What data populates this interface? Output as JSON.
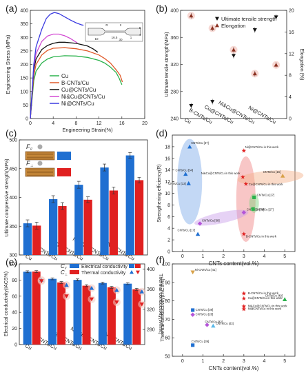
{
  "figure": {
    "width": 444,
    "height": 550
  },
  "colors": {
    "blue": "#1f6fd1",
    "red": "#e02020",
    "green": "#2bb24c",
    "magenta": "#b455d8",
    "orange": "#d8a24a",
    "darkred": "#9a2a1a"
  },
  "chart_data": [
    {
      "panel": "(a)",
      "type": "line",
      "xlabel": "Engineering Strain(%)",
      "ylabel": "Engineering Stress (MPa)",
      "xlim": [
        0,
        20
      ],
      "ylim": [
        0,
        400
      ],
      "xticks": [
        "0",
        "4",
        "8",
        "12",
        "16",
        "20"
      ],
      "yticks": [
        "0",
        "50",
        "100",
        "150",
        "200",
        "250",
        "300",
        "350",
        "400"
      ],
      "series": [
        {
          "name": "Cu",
          "color": "#2bb24c",
          "x": [
            0,
            0.3,
            0.6,
            1,
            2,
            3,
            4,
            6,
            8,
            10,
            12,
            13,
            14,
            15,
            15.5,
            16
          ],
          "y": [
            0,
            70,
            140,
            175,
            205,
            220,
            228,
            232,
            231,
            226,
            215,
            205,
            190,
            170,
            150,
            125
          ]
        },
        {
          "name": "B-CNTs/Cu",
          "color": "#e05a2a",
          "x": [
            0,
            0.3,
            0.6,
            1,
            2,
            3,
            4,
            6,
            8,
            10,
            12,
            13,
            14,
            15,
            15.7,
            16.1
          ],
          "y": [
            0,
            80,
            160,
            200,
            235,
            252,
            260,
            262,
            258,
            250,
            235,
            222,
            205,
            180,
            160,
            135
          ]
        },
        {
          "name": "Cu@CNTs/Cu",
          "color": "#111111",
          "x": [
            0,
            0.3,
            0.6,
            1,
            2,
            3,
            4,
            5,
            6,
            8,
            10,
            11,
            11.8
          ],
          "y": [
            0,
            90,
            180,
            220,
            255,
            270,
            278,
            282,
            282,
            278,
            268,
            257,
            245
          ]
        },
        {
          "name": "Ni&Cu@CNTs/Cu",
          "color": "#d24ad2",
          "x": [
            0,
            0.3,
            0.6,
            1,
            2,
            3,
            4,
            5,
            6,
            7,
            7.8,
            8.2
          ],
          "y": [
            0,
            95,
            190,
            240,
            285,
            305,
            312,
            312,
            306,
            296,
            285,
            280
          ]
        },
        {
          "name": "Ni@CNTs/Cu",
          "color": "#3a3ae0",
          "x": [
            0,
            0.3,
            0.6,
            1,
            2,
            2.8,
            3.5,
            4.2,
            5,
            6,
            7,
            8,
            9,
            9.3
          ],
          "y": [
            0,
            100,
            200,
            265,
            330,
            370,
            386,
            392,
            388,
            376,
            364,
            354,
            346,
            345
          ]
        }
      ],
      "inset_labels": [
        "R",
        "2",
        "16.5",
        "1",
        "10",
        "30",
        "9",
        "4"
      ]
    },
    {
      "panel": "(b)",
      "type": "scatter",
      "categories": [
        "Cu",
        "B-CNTs/Cu",
        "Cu@CNTs/Cu",
        "Ni&Cu@CNTs/Cu",
        "Ni@CNTs/Cu"
      ],
      "ylabel": "Ultimate tensile strength(MPa)",
      "y2label": "Elongation (%)",
      "ylim": [
        240,
        400
      ],
      "y2lim": [
        0,
        20
      ],
      "yticks": [
        "240",
        "280",
        "320",
        "360",
        "400"
      ],
      "y2ticks": [
        "0",
        "4",
        "8",
        "12",
        "16",
        "20"
      ],
      "series": [
        {
          "name": "Ultimate tensile strength",
          "axis": "left",
          "marker": "down-triangle",
          "color": "#111111",
          "values": [
            259,
            265,
            333,
            371,
            390
          ]
        },
        {
          "name": "Elongation",
          "axis": "right",
          "marker": "up-triangle",
          "color": "#8a3020",
          "values": [
            19.0,
            16.7,
            12.7,
            8.3,
            9.9
          ]
        }
      ]
    },
    {
      "panel": "(c)",
      "type": "bar",
      "categories": [
        "Cu",
        "B-CNTs/Cu",
        "Cu@CNTs/Cu",
        "Ni&Cu@CNTs/Cu",
        "Ni@CNTs/Cu"
      ],
      "ylabel": "Ultimate compressive strength(MPa)",
      "ylim": [
        300,
        500
      ],
      "yticks": [
        "300",
        "350",
        "400",
        "450",
        "500"
      ],
      "legend": [
        "F",
        "F"
      ],
      "legend_sub": [
        "//",
        "⊥"
      ],
      "series": [
        {
          "name": "F//",
          "color": "#1f6fd1",
          "values": [
            355,
            397,
            422,
            452,
            473
          ],
          "errors": [
            6,
            6,
            6,
            6,
            5
          ]
        },
        {
          "name": "F⊥",
          "color": "#e02020",
          "values": [
            351,
            385,
            396,
            412,
            430
          ],
          "errors": [
            6,
            6,
            5,
            6,
            5
          ]
        }
      ]
    },
    {
      "panel": "(d)",
      "type": "scatter",
      "xlabel": "CNTs content(vol.%)",
      "ylabel": "Strengthening efficiency(R)",
      "xlim": [
        -0.5,
        5.5
      ],
      "ylim": [
        0,
        20
      ],
      "xticks": [
        "0",
        "1",
        "2",
        "3",
        "4",
        "5"
      ],
      "yticks": [
        "0",
        "2",
        "4",
        "6",
        "8",
        "10",
        "12",
        "14",
        "16",
        "18"
      ],
      "points": [
        {
          "label": "CNTs/Cu [37]",
          "x": 0.35,
          "y": 18.0,
          "marker": "triangle",
          "color": "#1f6fd1"
        },
        {
          "label": "CNTs/Cu [34]",
          "x": 0.15,
          "y": 13.3,
          "marker": "triangle",
          "color": "#1f6fd1"
        },
        {
          "label": "CNTs/Cu [33]",
          "x": 0.3,
          "y": 11.7,
          "marker": "triangle",
          "color": "#1f6fd1"
        },
        {
          "label": "CNTs/Cu [17]",
          "x": 0.75,
          "y": 3.0,
          "marker": "triangle",
          "color": "#1f6fd1"
        },
        {
          "label": "CNTs/Cu [38]",
          "x": 0.85,
          "y": 4.8,
          "marker": "diamond",
          "color": "#b455d8"
        },
        {
          "label": "CNTs/Cu [39]",
          "x": 3.0,
          "y": 6.7,
          "marker": "diamond",
          "color": "#b455d8"
        },
        {
          "label": "Ni@CNTs/Cu in this work",
          "x": 3.0,
          "y": 17.3,
          "marker": "star",
          "color": "#e02020"
        },
        {
          "label": "Ni&Cu@CNTs/Cu in this work",
          "x": 2.95,
          "y": 12.8,
          "marker": "star",
          "color": "#e02020"
        },
        {
          "label": "Cu@CNTs/Cu in this work",
          "x": 3.1,
          "y": 11.6,
          "marker": "star",
          "color": "#e02020"
        },
        {
          "label": "B-CNTs/Cu in this work",
          "x": 3.0,
          "y": 3.0,
          "marker": "star",
          "color": "#e02020"
        },
        {
          "label": "CNTs/Cu [16]",
          "x": 4.9,
          "y": 13.0,
          "marker": "triangle",
          "color": "#d8a24a"
        },
        {
          "label": "CNTs/Cu [27]",
          "x": 3.5,
          "y": 9.3,
          "marker": "square",
          "color": "#2bb24c"
        },
        {
          "label": "CNTs/Cu [27]",
          "x": 3.45,
          "y": 7.3,
          "marker": "square",
          "color": "#2bb24c"
        }
      ]
    },
    {
      "panel": "(e)",
      "type": "bar",
      "categories": [
        "Cu",
        "B-CNTs/Cu",
        "Cu@CNTs/Cu",
        "Ni&Cu@CNTs/Cu",
        "Ni@CNTs/Cu"
      ],
      "ylabel": "Electrical conductivity(IACS%)",
      "y2label": "Thermal conductivity(W/mK)",
      "ylim": [
        0,
        100
      ],
      "y2lim": [
        250,
        410
      ],
      "yticks": [
        "0",
        "20",
        "40",
        "60",
        "80",
        "100"
      ],
      "y2ticks": [
        "280",
        "320",
        "360",
        "400"
      ],
      "legend": [
        "C",
        "C",
        "Electrical conductivity",
        "Thermal conductivity"
      ],
      "legend_sub": [
        "//",
        "⊥"
      ],
      "series": [
        {
          "name": "C// electrical",
          "color": "#1f6fd1",
          "values": [
            90.3,
            81.5,
            80.2,
            76.3,
            75.5
          ],
          "errors": [
            1.2,
            1.2,
            1.2,
            1.2,
            1.2
          ]
        },
        {
          "name": "C⊥ electrical",
          "color": "#e02020",
          "values": [
            90.5,
            77.0,
            73.0,
            71.0,
            68.5
          ],
          "errors": [
            1.2,
            1.2,
            1.2,
            1.2,
            1.2
          ]
        },
        {
          "name": "C// thermal",
          "axis": "right",
          "marker": "up-triangle",
          "color": "#1f6fd1",
          "values": [
            378,
            368,
            362,
            358,
            355
          ]
        },
        {
          "name": "C⊥ thermal",
          "axis": "right",
          "marker": "down-triangle",
          "color": "#e02020",
          "values": [
            376,
            346,
            340,
            334,
            330
          ]
        }
      ]
    },
    {
      "panel": "(f)",
      "type": "scatter",
      "xlabel": "CNTs content(vol.%)",
      "ylabel": "Thermal conductivity(IACS%)",
      "xlim": [
        -0.5,
        5.5
      ],
      "ylim": [
        50,
        100
      ],
      "xticks": [
        "0",
        "1",
        "2",
        "3",
        "4",
        "5"
      ],
      "yticks": [
        "50",
        "60",
        "70",
        "80",
        "90",
        "100"
      ],
      "points": [
        {
          "label": "Ni-CNTs/Cu [41]",
          "x": 0.5,
          "y": 95.5,
          "marker": "down-triangle",
          "color": "#d8a24a"
        },
        {
          "label": "B-CNTs/Cu in this work",
          "x": 3.0,
          "y": 84.0,
          "marker": "star",
          "color": "#e02020"
        },
        {
          "label": "Cu@CNTs/Cu in this work",
          "x": 3.0,
          "y": 81.3,
          "marker": "star",
          "color": "#e02020"
        },
        {
          "label": "Ni&Cu@CNTs/Cu in this work",
          "x": 3.0,
          "y": 77.0,
          "marker": "star",
          "color": "#e02020"
        },
        {
          "label": "Ni@CNTs/Cu in this work",
          "x": 3.0,
          "y": 75.5,
          "marker": "star",
          "color": "#e02020"
        },
        {
          "label": "CNTs/Cu [40]",
          "x": 5.0,
          "y": 80.8,
          "marker": "triangle",
          "color": "#2bb24c"
        },
        {
          "label": "CNTs/Cu [39]",
          "x": 0.5,
          "y": 75.0,
          "marker": "square",
          "color": "#1f6fd1"
        },
        {
          "label": "CNTs/Cu [28]",
          "x": 0.5,
          "y": 72.5,
          "marker": "diamond",
          "color": "#b455d8"
        },
        {
          "label": "CNTs/Cu [42]",
          "x": 1.2,
          "y": 67.0,
          "marker": "diamond",
          "color": "#b455d8"
        },
        {
          "label": "CNTs/Cu [43]",
          "x": 1.5,
          "y": 66.5,
          "marker": "triangle",
          "color": "#5ab8e8"
        },
        {
          "label": "CNTs/Cu [39]",
          "x": 0.5,
          "y": 56.0,
          "marker": "square",
          "color": "#1f6fd1"
        }
      ]
    }
  ]
}
